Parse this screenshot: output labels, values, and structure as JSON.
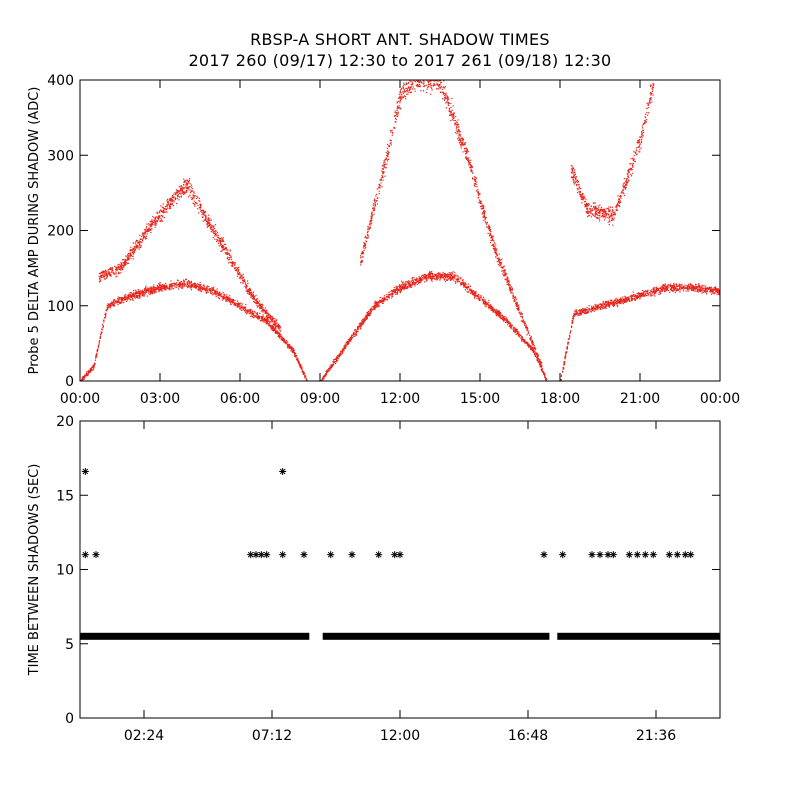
{
  "title_line1": "RBSP-A SHORT ANT. SHADOW TIMES",
  "title_line2": "2017 260 (09/17) 12:30 to 2017 261 (09/18) 12:30",
  "colors": {
    "top_points": "#e8231a",
    "bottom_points": "#000000",
    "axis": "#000000"
  },
  "chart_data": [
    {
      "type": "scatter",
      "ylabel": "Probe 5 DELTA AMP DURING SHADOW (ADC)",
      "xlabel": "",
      "xlim_hours": [
        0,
        24
      ],
      "ylim": [
        0,
        400
      ],
      "x_tick_labels": [
        "00:00",
        "03:00",
        "06:00",
        "09:00",
        "12:00",
        "15:00",
        "18:00",
        "21:00",
        "00:00"
      ],
      "y_tick_labels": [
        "0",
        "100",
        "200",
        "300",
        "400"
      ],
      "marker": "dot",
      "series": [
        {
          "note": "lower band, first pass",
          "x_hours": [
            0.0,
            0.5,
            1.0,
            2.0,
            3.0,
            4.0,
            5.0,
            6.0,
            7.0,
            8.0,
            8.5
          ],
          "values": [
            0,
            20,
            100,
            115,
            125,
            130,
            120,
            100,
            80,
            40,
            0
          ]
        },
        {
          "note": "upper band, first pass",
          "x_hours": [
            0.7,
            1.5,
            2.5,
            3.5,
            4.0,
            4.5,
            5.5,
            6.5,
            7.5
          ],
          "values": [
            140,
            150,
            200,
            245,
            260,
            230,
            170,
            110,
            70
          ]
        },
        {
          "note": "lower band, second pass",
          "x_hours": [
            9.0,
            10.0,
            11.0,
            12.0,
            13.0,
            14.0,
            15.0,
            16.0,
            17.0,
            17.5
          ],
          "values": [
            0,
            50,
            100,
            125,
            140,
            140,
            110,
            80,
            40,
            0
          ]
        },
        {
          "note": "upper band, second pass",
          "x_hours": [
            10.5,
            11.5,
            12.0,
            12.5,
            13.5,
            14.5,
            15.5,
            16.5,
            17.3
          ],
          "values": [
            160,
            300,
            380,
            400,
            400,
            300,
            180,
            90,
            20
          ]
        },
        {
          "note": "third pass",
          "x_hours": [
            18.0,
            18.5,
            19.0,
            20.0,
            21.0,
            22.0,
            23.0,
            24.0
          ],
          "values": [
            0,
            90,
            95,
            105,
            115,
            125,
            125,
            120
          ]
        },
        {
          "note": "third pass upper",
          "x_hours": [
            18.4,
            19.0,
            20.0,
            21.0,
            21.5
          ],
          "values": [
            280,
            230,
            220,
            320,
            400
          ]
        }
      ]
    },
    {
      "type": "scatter",
      "ylabel": "TIME BETWEEN SHADOWS (SEC)",
      "xlabel": "",
      "xlim_hours": [
        0,
        24
      ],
      "ylim": [
        0,
        20
      ],
      "x_tick_labels": [
        "02:24",
        "07:12",
        "12:00",
        "16:48",
        "21:36"
      ],
      "x_tick_hours": [
        2.4,
        7.2,
        12.0,
        16.8,
        21.6
      ],
      "y_tick_labels": [
        "0",
        "5",
        "10",
        "15",
        "20"
      ],
      "marker": "*",
      "baseline_value": 5.5,
      "baseline_ranges_hours": [
        [
          0.0,
          8.6
        ],
        [
          9.1,
          17.6
        ],
        [
          17.9,
          24.0
        ]
      ],
      "outliers": [
        {
          "x": 0.2,
          "y": 16.6
        },
        {
          "x": 0.2,
          "y": 11.0
        },
        {
          "x": 0.6,
          "y": 11.0
        },
        {
          "x": 6.4,
          "y": 11.0
        },
        {
          "x": 6.6,
          "y": 11.0
        },
        {
          "x": 6.8,
          "y": 11.0
        },
        {
          "x": 7.0,
          "y": 11.0
        },
        {
          "x": 7.6,
          "y": 11.0
        },
        {
          "x": 7.6,
          "y": 16.6
        },
        {
          "x": 8.4,
          "y": 11.0
        },
        {
          "x": 9.4,
          "y": 11.0
        },
        {
          "x": 10.2,
          "y": 11.0
        },
        {
          "x": 11.2,
          "y": 11.0
        },
        {
          "x": 11.8,
          "y": 11.0
        },
        {
          "x": 12.0,
          "y": 11.0
        },
        {
          "x": 17.4,
          "y": 11.0
        },
        {
          "x": 18.1,
          "y": 11.0
        },
        {
          "x": 19.2,
          "y": 11.0
        },
        {
          "x": 19.5,
          "y": 11.0
        },
        {
          "x": 19.8,
          "y": 11.0
        },
        {
          "x": 20.0,
          "y": 11.0
        },
        {
          "x": 20.6,
          "y": 11.0
        },
        {
          "x": 20.9,
          "y": 11.0
        },
        {
          "x": 21.2,
          "y": 11.0
        },
        {
          "x": 21.5,
          "y": 11.0
        },
        {
          "x": 22.1,
          "y": 11.0
        },
        {
          "x": 22.4,
          "y": 11.0
        },
        {
          "x": 22.7,
          "y": 11.0
        },
        {
          "x": 22.9,
          "y": 11.0
        }
      ]
    }
  ]
}
